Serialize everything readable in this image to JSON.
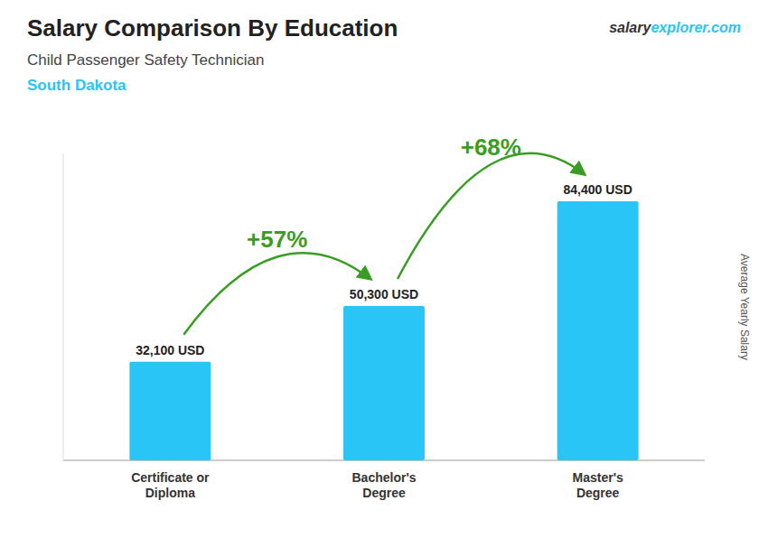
{
  "chart_data": {
    "type": "bar",
    "title": "Salary Comparison By Education",
    "subtitle": "Child Passenger Safety Technician",
    "ylabel": "Average Yearly Salary",
    "categories": [
      "Certificate or\nDiploma",
      "Bachelor's\nDegree",
      "Master's\nDegree"
    ],
    "values": [
      32100,
      50300,
      84400
    ],
    "value_labels": [
      "32,100 USD",
      "50,300 USD",
      "84,400 USD"
    ],
    "color": "#29c5f6",
    "ylim": [
      0,
      100000
    ],
    "grid": false,
    "data_labels": true,
    "tick_labels": "x",
    "annotations": {
      "location": "South Dakota",
      "arrows": [
        "+57%",
        "+68%"
      ],
      "brand": [
        "salary",
        "explorer.com"
      ]
    }
  }
}
